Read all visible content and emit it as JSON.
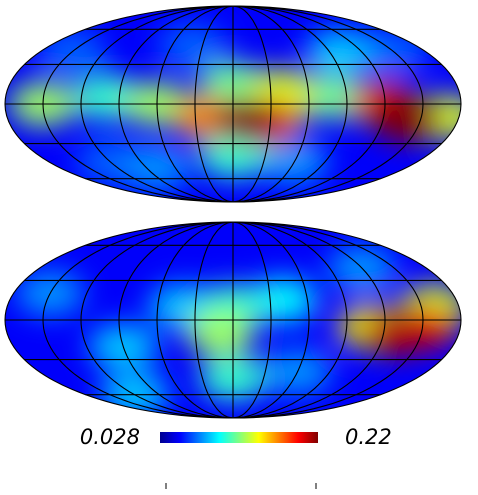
{
  "chart_data": [
    {
      "type": "mollweide",
      "lon": [
        -150,
        150,
        -120,
        -80,
        -40,
        60,
        100,
        -100,
        0,
        80,
        -60,
        40,
        -150,
        170,
        0,
        30,
        -20,
        120,
        25,
        140,
        10,
        135
      ],
      "lat": [
        40,
        40,
        -45,
        -50,
        45,
        -45,
        40,
        5,
        15,
        5,
        0,
        10,
        0,
        -10,
        -40,
        -10,
        -10,
        0,
        -15,
        -12,
        -12,
        -8
      ],
      "values": [
        0.07,
        0.07,
        0.07,
        0.08,
        0.07,
        0.08,
        0.09,
        0.11,
        0.12,
        0.12,
        0.13,
        0.14,
        0.13,
        0.14,
        0.11,
        0.16,
        0.17,
        0.19,
        0.2,
        0.21,
        0.22,
        0.22
      ]
    },
    {
      "type": "mollweide",
      "lon": [
        -150,
        120,
        -90,
        -40,
        60,
        -120,
        40,
        0,
        0,
        -10,
        160,
        110,
        150,
        130
      ],
      "lat": [
        20,
        40,
        -20,
        10,
        -40,
        -60,
        15,
        10,
        -45,
        -10,
        10,
        -5,
        -5,
        -10
      ],
      "values": [
        0.08,
        0.08,
        0.09,
        0.09,
        0.08,
        0.09,
        0.1,
        0.11,
        0.11,
        0.13,
        0.14,
        0.15,
        0.2,
        0.21
      ]
    }
  ],
  "colorbar": {
    "min": 0.028,
    "max": 0.22
  }
}
